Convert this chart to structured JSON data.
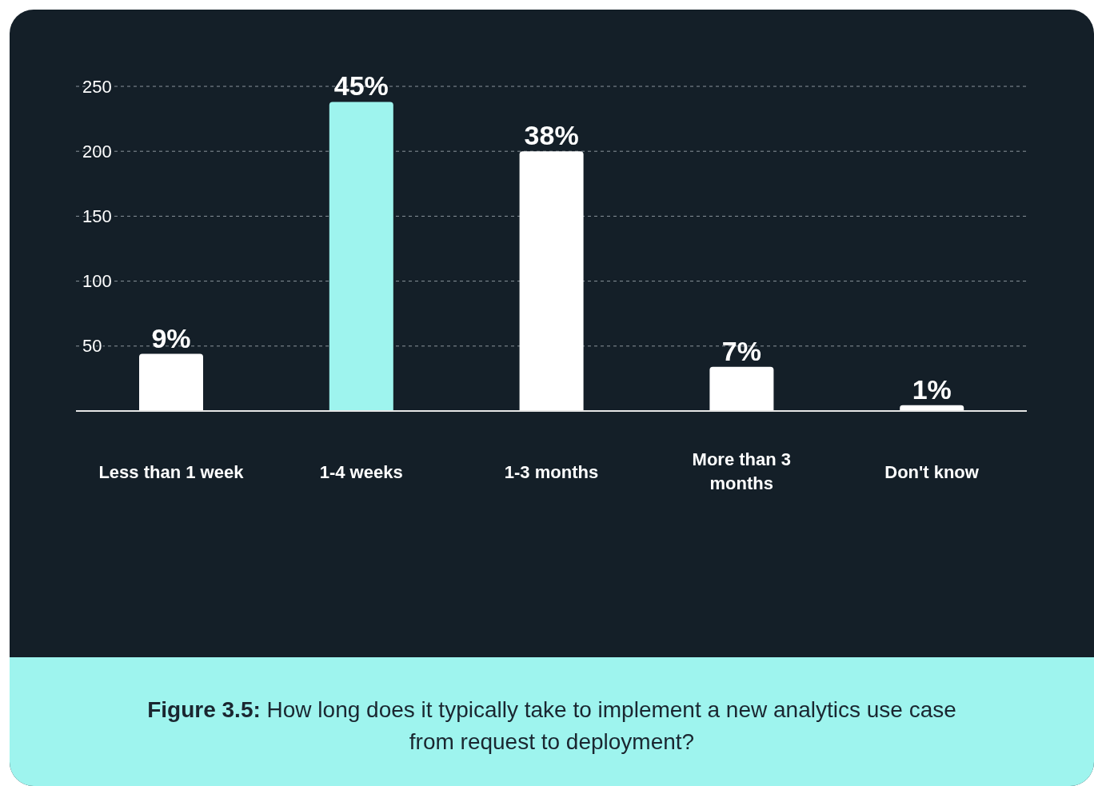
{
  "chart_data": {
    "type": "bar",
    "categories": [
      "Less than 1 week",
      "1-4 weeks",
      "1-3 months",
      "More than 3 months",
      "Don't know"
    ],
    "values": [
      44,
      238,
      200,
      34,
      4.5
    ],
    "colors": [
      "#ffffff",
      "#9ef4ee",
      "#ffffff",
      "#ffffff",
      "#ffffff"
    ],
    "ylim": [
      0,
      250
    ],
    "yticks": [
      50,
      100,
      150,
      200,
      250
    ],
    "grid": "y",
    "annotations": [
      {
        "text": "9%",
        "x": "Less than 1 week",
        "y": 44
      },
      {
        "text": "45%",
        "x": "1-4 weeks",
        "y": 238
      },
      {
        "text": "38%",
        "x": "1-3 months",
        "y": 200
      },
      {
        "text": "7%",
        "x": "More than 3 months",
        "y": 34
      },
      {
        "text": "1%",
        "x": "Don't know",
        "y": 4.5
      },
      "Figure 3.5: How long does it typically take to implement a new analytics use case from request to deployment?"
    ]
  }
}
